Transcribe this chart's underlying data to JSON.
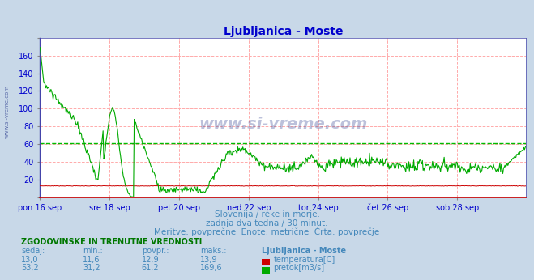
{
  "title": "Ljubljanica - Moste",
  "title_color": "#0000cc",
  "bg_color": "#c8d8e8",
  "plot_bg_color": "#ffffff",
  "grid_color": "#ff8888",
  "avg_line_color": "#00bb00",
  "temp_color": "#cc0000",
  "flow_color": "#00aa00",
  "watermark_color": "#223388",
  "subtitle1": "Slovenija / reke in morje.",
  "subtitle2": "zadnja dva tedna / 30 minut.",
  "subtitle3": "Meritve: povprečne  Enote: metrične  Črta: povprečje",
  "subtitle_color": "#4488bb",
  "xlabel_color": "#0000cc",
  "ylabel_color": "#0000cc",
  "xlabels": [
    "pon 16 sep",
    "sre 18 sep",
    "pet 20 sep",
    "ned 22 sep",
    "tor 24 sep",
    "čet 26 sep",
    "sob 28 sep"
  ],
  "xtick_positions": [
    0,
    96,
    192,
    288,
    384,
    480,
    576
  ],
  "ylim": [
    0,
    180
  ],
  "ytick_vals": [
    20,
    40,
    60,
    80,
    100,
    120,
    140,
    160
  ],
  "avg_flow": 61.2,
  "table_header": "ZGODOVINSKE IN TRENUTNE VREDNOSTI",
  "col_headers": [
    "sedaj:",
    "min.:",
    "povpr.:",
    "maks.:",
    "Ljubljanica - Moste"
  ],
  "row1": [
    "13,0",
    "11,6",
    "12,9",
    "13,9"
  ],
  "row1_label": "temperatura[C]",
  "row1_color": "#cc0000",
  "row2": [
    "53,2",
    "31,2",
    "61,2",
    "169,6"
  ],
  "row2_label": "pretok[m3/s]",
  "row2_color": "#00aa00",
  "total_points": 672
}
